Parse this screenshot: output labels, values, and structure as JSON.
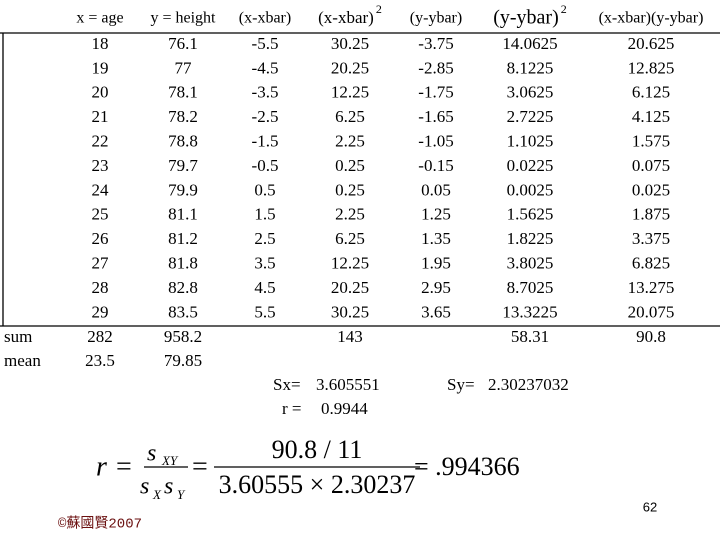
{
  "table": {
    "headers": [
      {
        "text": "x = age"
      },
      {
        "text": "y = height"
      },
      {
        "text": "(x-xbar)"
      },
      {
        "text": "(x-xbar)",
        "sup": "2"
      },
      {
        "text": "(y-ybar)"
      },
      {
        "text": "(y-ybar)",
        "sup": "2"
      },
      {
        "text": "(x-xbar)(y-ybar)"
      }
    ],
    "rows": [
      [
        "18",
        "76.1",
        "-5.5",
        "30.25",
        "-3.75",
        "14.0625",
        "20.625"
      ],
      [
        "19",
        "77",
        "-4.5",
        "20.25",
        "-2.85",
        "8.1225",
        "12.825"
      ],
      [
        "20",
        "78.1",
        "-3.5",
        "12.25",
        "-1.75",
        "3.0625",
        "6.125"
      ],
      [
        "21",
        "78.2",
        "-2.5",
        "6.25",
        "-1.65",
        "2.7225",
        "4.125"
      ],
      [
        "22",
        "78.8",
        "-1.5",
        "2.25",
        "-1.05",
        "1.1025",
        "1.575"
      ],
      [
        "23",
        "79.7",
        "-0.5",
        "0.25",
        "-0.15",
        "0.0225",
        "0.075"
      ],
      [
        "24",
        "79.9",
        "0.5",
        "0.25",
        "0.05",
        "0.0025",
        "0.025"
      ],
      [
        "25",
        "81.1",
        "1.5",
        "2.25",
        "1.25",
        "1.5625",
        "1.875"
      ],
      [
        "26",
        "81.2",
        "2.5",
        "6.25",
        "1.35",
        "1.8225",
        "3.375"
      ],
      [
        "27",
        "81.8",
        "3.5",
        "12.25",
        "1.95",
        "3.8025",
        "6.825"
      ],
      [
        "28",
        "82.8",
        "4.5",
        "20.25",
        "2.95",
        "8.7025",
        "13.275"
      ],
      [
        "29",
        "83.5",
        "5.5",
        "30.25",
        "3.65",
        "13.3225",
        "20.075"
      ]
    ],
    "summary": [
      {
        "label": "sum",
        "cells": [
          "282",
          "958.2",
          null,
          "143",
          null,
          "58.31",
          "90.8"
        ]
      },
      {
        "label": "mean",
        "cells": [
          "23.5",
          "79.85",
          null,
          null,
          null,
          null,
          null
        ]
      }
    ]
  },
  "stats": {
    "sx_label": "Sx=",
    "sx": "3.605551",
    "sy_label": "Sy=",
    "sy": "2.30237032",
    "r_label": "r =",
    "r": "0.9944"
  },
  "formula": {
    "r": "r",
    "eq1": "=",
    "s1": "s",
    "sub_xy": "XY",
    "s2": "s",
    "sub_x": "X",
    "s3": "s",
    "sub_y": "Y",
    "eq2": "=",
    "numerator": "90.8 / 11",
    "denominator": "3.60555 × 2.30237",
    "result": "= .994366"
  },
  "footer": {
    "page": "62",
    "copyright": "©蘇國賢2007"
  }
}
